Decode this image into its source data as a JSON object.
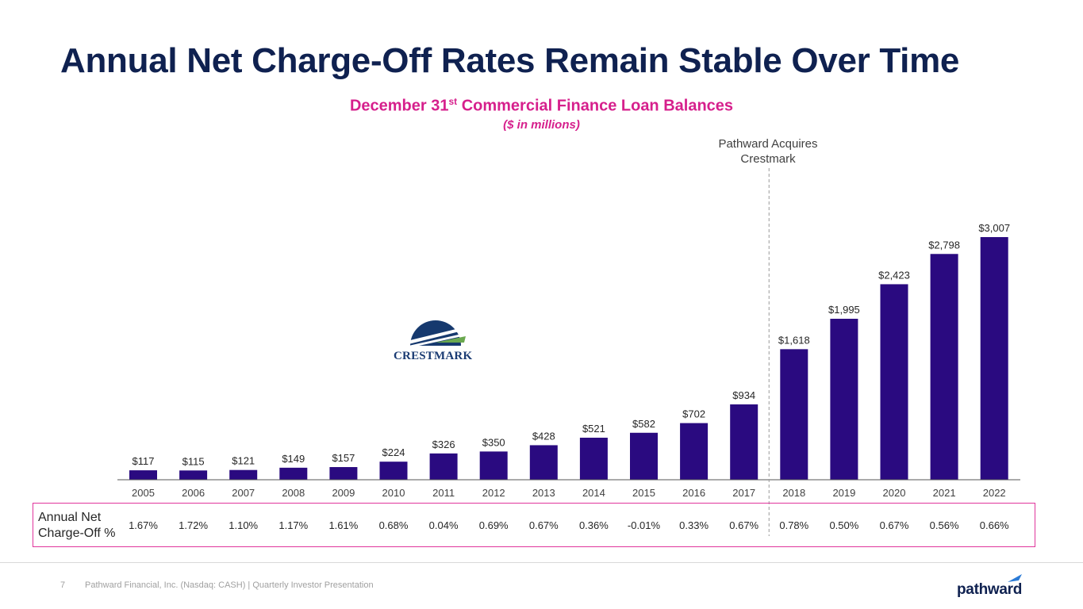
{
  "slide": {
    "title": "Annual Net Charge-Off Rates Remain Stable Over Time",
    "subtitle_main": "December 31",
    "subtitle_sup": "st",
    "subtitle_rest": " Commercial Finance Loan Balances",
    "subtitle_note": "($ in millions)",
    "annotation_line1": "Pathward Acquires",
    "annotation_line2": "Crestmark",
    "rate_label_line1": "Annual Net",
    "rate_label_line2": "Charge-Off %",
    "page_number": "7",
    "footer": "Pathward Financial, Inc. (Nasdaq: CASH) | Quarterly Investor Presentation",
    "crestmark_logo_text": "CRESTMARK",
    "pathward_logo_text": "pathward"
  },
  "colors": {
    "bar": "#2a0a80",
    "title": "#0f2150",
    "accent": "#d61f8c"
  },
  "chart_data": {
    "type": "bar",
    "categories": [
      "2005",
      "2006",
      "2007",
      "2008",
      "2009",
      "2010",
      "2011",
      "2012",
      "2013",
      "2014",
      "2015",
      "2016",
      "2017",
      "2018",
      "2019",
      "2020",
      "2021",
      "2022"
    ],
    "values": [
      117,
      115,
      121,
      149,
      157,
      224,
      326,
      350,
      428,
      521,
      582,
      702,
      934,
      1618,
      1995,
      2423,
      2798,
      3007
    ],
    "value_labels": [
      "$117",
      "$115",
      "$121",
      "$149",
      "$157",
      "$224",
      "$326",
      "$350",
      "$428",
      "$521",
      "$582",
      "$702",
      "$934",
      "$1,618",
      "$1,995",
      "$2,423",
      "$2,798",
      "$3,007"
    ],
    "charge_off_rates": [
      "1.67%",
      "1.72%",
      "1.10%",
      "1.17%",
      "1.61%",
      "0.68%",
      "0.04%",
      "0.69%",
      "0.67%",
      "0.36%",
      "-0.01%",
      "0.33%",
      "0.67%",
      "0.78%",
      "0.50%",
      "0.67%",
      "0.56%",
      "0.66%"
    ],
    "title": "December 31st Commercial Finance Loan Balances",
    "ylabel": "($ in millions)",
    "ylim": [
      0,
      3007
    ],
    "grid": false,
    "annotation": {
      "label": "Pathward Acquires Crestmark",
      "between": [
        "2017",
        "2018"
      ]
    }
  }
}
